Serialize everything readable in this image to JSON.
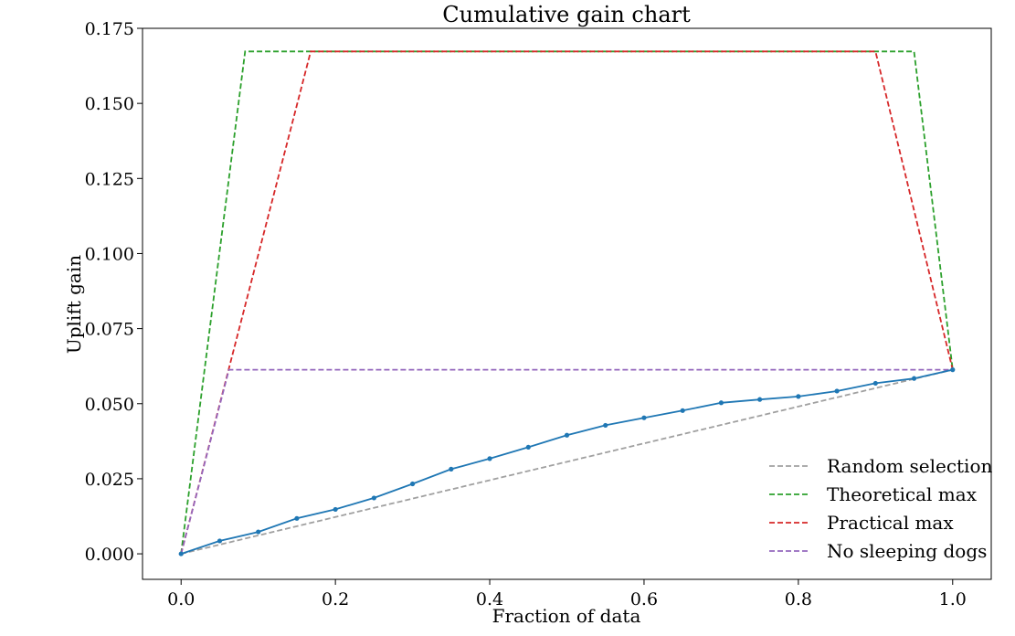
{
  "chart_data": {
    "type": "line",
    "title": "Cumulative gain chart",
    "xlabel": "Fraction of data",
    "ylabel": "Uplift gain",
    "xlim": [
      -0.05,
      1.05
    ],
    "ylim": [
      -0.0085,
      0.175
    ],
    "xticks": [
      0.0,
      0.2,
      0.4,
      0.6,
      0.8,
      1.0
    ],
    "xtick_labels": [
      "0.0",
      "0.2",
      "0.4",
      "0.6",
      "0.8",
      "1.0"
    ],
    "yticks": [
      0.0,
      0.025,
      0.05,
      0.075,
      0.1,
      0.125,
      0.15,
      0.175
    ],
    "ytick_labels": [
      "0.000",
      "0.025",
      "0.050",
      "0.075",
      "0.100",
      "0.125",
      "0.150",
      "0.175"
    ],
    "grid": false,
    "legend_position": "lower-right",
    "series": [
      {
        "x": [
          0.0,
          0.05,
          0.1,
          0.15,
          0.2,
          0.25,
          0.3,
          0.35,
          0.4,
          0.45,
          0.5,
          0.55,
          0.6,
          0.65,
          0.7,
          0.75,
          0.8,
          0.85,
          0.9,
          0.95,
          1.0
        ],
        "y": [
          0.0,
          0.0043,
          0.0073,
          0.0118,
          0.0148,
          0.0186,
          0.0233,
          0.0282,
          0.0317,
          0.0355,
          0.0395,
          0.0428,
          0.0453,
          0.0477,
          0.0503,
          0.0514,
          0.0524,
          0.0542,
          0.0568,
          0.0584,
          0.0613
        ],
        "color": "#1f77b4",
        "style": "solid",
        "marker": "dot"
      },
      {
        "name": "Random selection",
        "x": [
          0.0,
          1.0
        ],
        "y": [
          0.0,
          0.0613
        ],
        "color": "#a0a0a0",
        "style": "dashed"
      },
      {
        "name": "Theoretical max",
        "x": [
          0.0,
          0.083,
          0.95,
          1.0
        ],
        "y": [
          0.0,
          0.1673,
          0.1673,
          0.0613
        ],
        "color": "#2ca02c",
        "style": "dashed"
      },
      {
        "name": "Practical max",
        "x": [
          0.0,
          0.168,
          0.9,
          1.0
        ],
        "y": [
          0.0,
          0.1673,
          0.1673,
          0.0613
        ],
        "color": "#d62728",
        "style": "dashed"
      },
      {
        "name": "No sleeping dogs",
        "x": [
          0.0,
          0.062,
          1.0
        ],
        "y": [
          0.0,
          0.0613,
          0.0613
        ],
        "color": "#9467bd",
        "style": "dashed"
      }
    ]
  }
}
